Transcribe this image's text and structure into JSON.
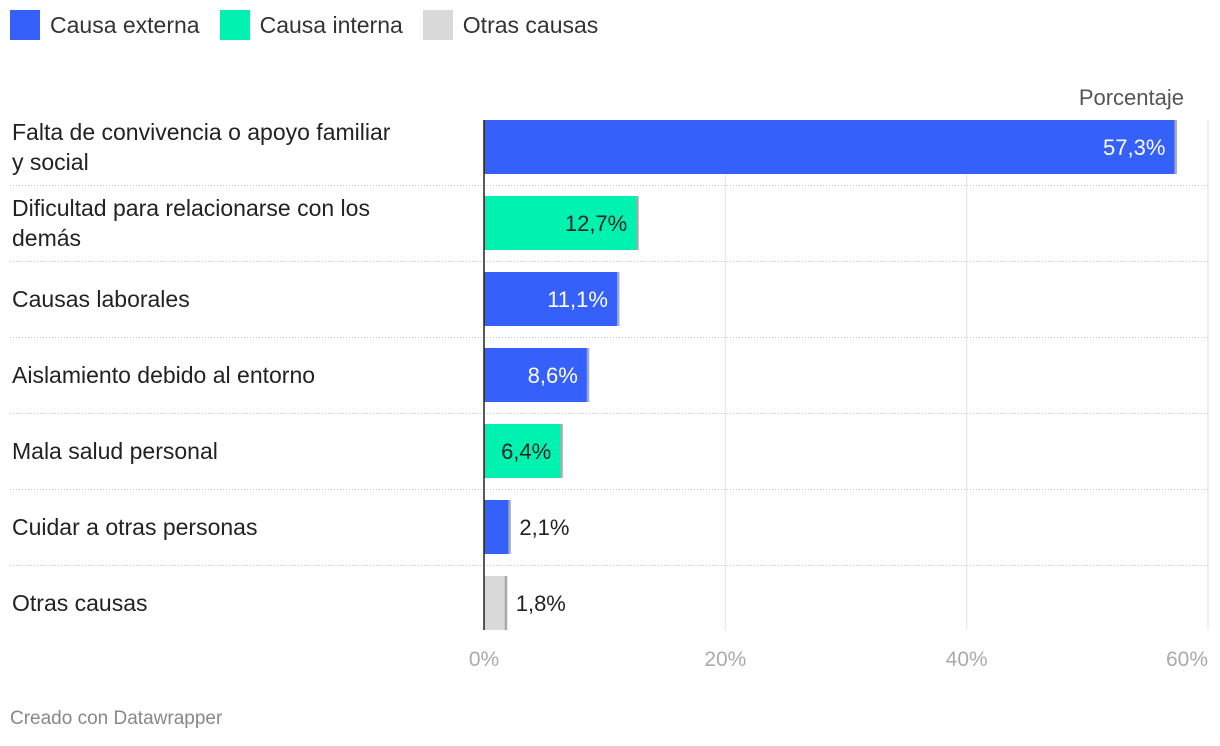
{
  "legend": [
    {
      "label": "Causa externa",
      "color": "#3660fa"
    },
    {
      "label": "Causa interna",
      "color": "#00f2b0"
    },
    {
      "label": "Otras causas",
      "color": "#d9d9d9"
    }
  ],
  "chart_data": {
    "type": "bar",
    "orientation": "horizontal",
    "value_header": "Porcentaje",
    "categories": [
      "Falta de convivencia o apoyo familiar y social",
      "Dificultad para relacionarse con los demás",
      "Causas laborales",
      "Aislamiento debido al entorno",
      "Mala salud personal",
      "Cuidar a otras personas",
      "Otras causas"
    ],
    "values": [
      57.3,
      12.7,
      11.1,
      8.6,
      6.4,
      2.1,
      1.8
    ],
    "value_labels": [
      "57,3%",
      "12,7%",
      "11,1%",
      "8,6%",
      "6,4%",
      "2,1%",
      "1,8%"
    ],
    "groups": [
      "Causa externa",
      "Causa interna",
      "Causa externa",
      "Causa externa",
      "Causa interna",
      "Causa externa",
      "Otras causas"
    ],
    "xlim": [
      0,
      60
    ],
    "x_ticks": [
      0,
      20,
      40,
      60
    ],
    "x_tick_labels": [
      "0%",
      "20%",
      "40%",
      "60%"
    ],
    "grid": true
  },
  "footer": "Creado con Datawrapper"
}
